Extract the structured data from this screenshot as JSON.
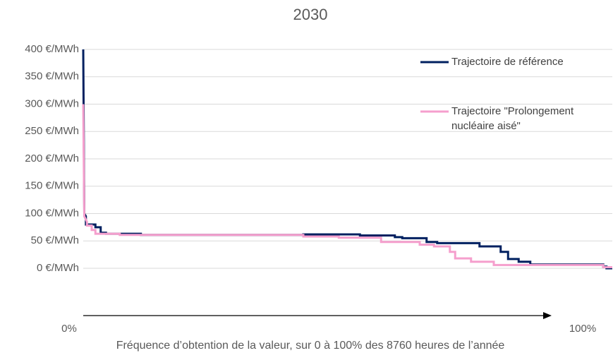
{
  "chart_data": {
    "type": "line",
    "title": "2030",
    "x_label": "Fréquence d’obtention de la valeur, sur 0 à 100% des 8760 heures de l’année",
    "xlim": [
      0,
      100
    ],
    "xticks": [
      {
        "value": 0,
        "label": "0%"
      },
      {
        "value": 100,
        "label": "100%"
      }
    ],
    "ylim": [
      0,
      400
    ],
    "yticks": [
      {
        "value": 0,
        "label": "0 €/MWh"
      },
      {
        "value": 50,
        "label": "50 €/MWh"
      },
      {
        "value": 100,
        "label": "100 €/MWh"
      },
      {
        "value": 150,
        "label": "150 €/MWh"
      },
      {
        "value": 200,
        "label": "200 €/MWh"
      },
      {
        "value": 250,
        "label": "250 €/MWh"
      },
      {
        "value": 300,
        "label": "300 €/MWh"
      },
      {
        "value": 350,
        "label": "350 €/MWh"
      },
      {
        "value": 400,
        "label": "400 €/MWh"
      }
    ],
    "grid": true,
    "legend": "top-right",
    "series": [
      {
        "name": "Trajectoire de référence",
        "color": "#002060",
        "x": [
          0,
          0.2,
          0.5,
          0.5,
          2.3,
          2.3,
          3.3,
          3.3,
          4.3,
          4.3,
          10.9,
          10.9,
          41.6,
          41.6,
          52.3,
          52.3,
          58.9,
          58.9,
          60.3,
          60.3,
          64.9,
          64.9,
          66.9,
          66.9,
          74.9,
          74.9,
          78.9,
          78.9,
          80.3,
          80.3,
          82.3,
          82.3,
          84.5,
          84.5,
          98.3,
          98.3,
          98.9,
          98.9,
          100
        ],
        "values": [
          400,
          100,
          95,
          80,
          80,
          75,
          75,
          65,
          65,
          63,
          63,
          61,
          61,
          62,
          62,
          60,
          60,
          57,
          57,
          55,
          55,
          48,
          48,
          46,
          46,
          40,
          40,
          30,
          30,
          17,
          17,
          12,
          12,
          7,
          7,
          3,
          3,
          0,
          0
        ]
      },
      {
        "name": "Trajectoire \"Prolongement nucléaire aisé\"",
        "color": "#f59fcd",
        "x": [
          0,
          0.2,
          0.7,
          0.7,
          1.6,
          1.6,
          2.3,
          2.3,
          6.9,
          6.9,
          41.6,
          41.6,
          48.3,
          48.3,
          56.3,
          56.3,
          63.6,
          63.6,
          66.3,
          66.3,
          69.3,
          69.3,
          70.3,
          70.3,
          73.3,
          73.3,
          77.6,
          77.6,
          98.3,
          98.3,
          100
        ],
        "values": [
          300,
          95,
          85,
          78,
          78,
          70,
          70,
          63,
          63,
          61,
          61,
          58,
          58,
          56,
          56,
          48,
          48,
          43,
          43,
          40,
          40,
          30,
          30,
          18,
          18,
          12,
          12,
          6,
          6,
          2,
          2
        ]
      }
    ]
  }
}
